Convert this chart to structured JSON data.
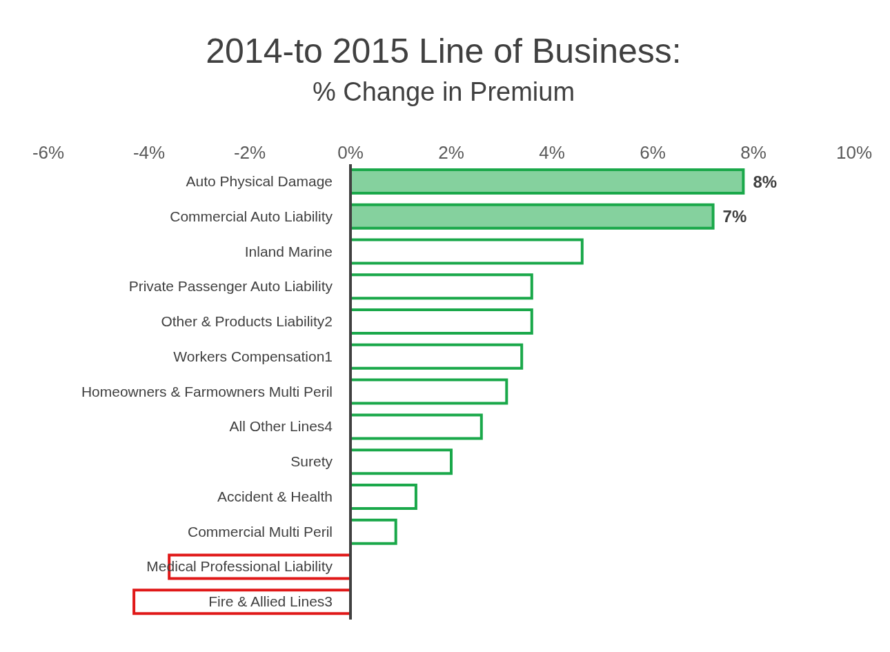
{
  "chart_data": {
    "type": "bar",
    "orientation": "horizontal",
    "title": "2014-to 2015 Line of Business:",
    "subtitle": "% Change in Premium",
    "categories": [
      "Auto Physical Damage",
      "Commercial Auto Liability",
      "Inland Marine",
      "Private Passenger Auto Liability",
      "Other & Products Liability2",
      "Workers Compensation1",
      "Homeowners & Farmowners Multi Peril",
      "All Other Lines4",
      "Surety",
      "Accident & Health",
      "Commercial Multi Peril",
      "Medical Professional Liability",
      "Fire & Allied Lines3"
    ],
    "values": [
      7.8,
      7.2,
      4.6,
      3.6,
      3.6,
      3.4,
      3.1,
      2.6,
      2.0,
      1.3,
      0.9,
      -3.6,
      -4.3
    ],
    "value_labels": [
      "8%",
      "7%",
      null,
      null,
      null,
      null,
      null,
      null,
      null,
      null,
      null,
      null,
      null
    ],
    "colors": [
      "#1aa84a",
      "#1aa84a",
      "#1aa84a",
      "#1aa84a",
      "#1aa84a",
      "#1aa84a",
      "#1aa84a",
      "#1aa84a",
      "#1aa84a",
      "#1aa84a",
      "#1aa84a",
      "#e01818",
      "#e01818"
    ],
    "xlim": [
      -6,
      10
    ],
    "xticks": [
      {
        "value": -6,
        "label": "-6%"
      },
      {
        "value": -4,
        "label": "-4%"
      },
      {
        "value": -2,
        "label": "-2%"
      },
      {
        "value": 0,
        "label": "0%"
      },
      {
        "value": 2,
        "label": "2%"
      },
      {
        "value": 4,
        "label": "4%"
      },
      {
        "value": 6,
        "label": "6%"
      },
      {
        "value": 8,
        "label": "8%"
      },
      {
        "value": 10,
        "label": "10%"
      }
    ],
    "grid": false,
    "legend": false
  }
}
